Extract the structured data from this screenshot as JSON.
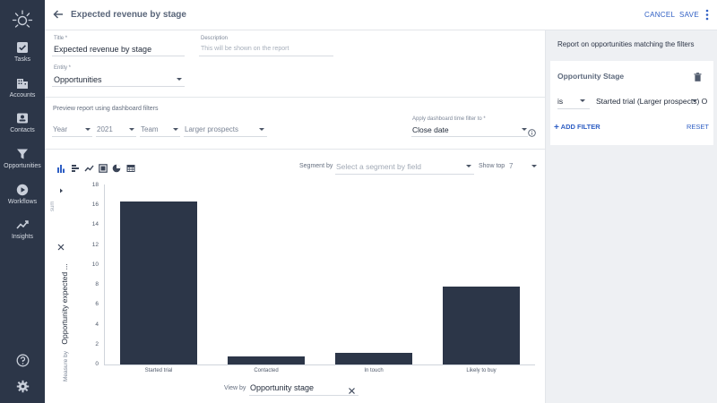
{
  "sidebar": {
    "items": [
      {
        "label": "Tasks",
        "icon": "tasks-icon"
      },
      {
        "label": "Accounts",
        "icon": "accounts-icon"
      },
      {
        "label": "Contacts",
        "icon": "contacts-icon"
      },
      {
        "label": "Opportunities",
        "icon": "filter-funnel-icon"
      },
      {
        "label": "Workflows",
        "icon": "play-circle-icon"
      },
      {
        "label": "Insights",
        "icon": "trend-line-icon"
      }
    ],
    "bottom": [
      {
        "icon": "help-icon"
      },
      {
        "icon": "gear-icon"
      }
    ]
  },
  "header": {
    "title": "Expected revenue by stage",
    "cancel_label": "CANCEL",
    "save_label": "SAVE"
  },
  "form": {
    "title_label": "Title *",
    "title_value": "Expected revenue by stage",
    "description_label": "Description",
    "description_placeholder": "This will be shown on the report",
    "entity_label": "Entity *",
    "entity_value": "Opportunities",
    "preview_text": "Preview report using dashboard filters",
    "filters": {
      "year": "Year",
      "year_value": "2021",
      "team": "Team",
      "team_value": "Larger prospects",
      "time_filter_label": "Apply dashboard time filter to *",
      "time_filter_value": "Close date"
    }
  },
  "chart_toolbar": {
    "segment_label": "Segment by",
    "segment_placeholder": "Select a segment by field",
    "show_top_label": "Show top",
    "show_top_value": "7",
    "sum_label": "sum",
    "measure_prefix": "Measure by",
    "measure_value": "Opportunity expected ...",
    "view_by_label": "View by",
    "view_by_value": "Opportunity stage"
  },
  "chart_data": {
    "type": "bar",
    "categories": [
      "Started trial",
      "Contacted",
      "In touch",
      "Likely to buy"
    ],
    "values": [
      16.4,
      0.8,
      1.2,
      7.8
    ],
    "ylim": [
      0,
      18
    ],
    "yticks": [
      0,
      2,
      4,
      6,
      8,
      10,
      12,
      14,
      16,
      18
    ],
    "bar_color": "#2c3648",
    "grid": false
  },
  "right_panel": {
    "title": "Report on opportunities matching the filters",
    "filter_card": {
      "title": "Opportunity Stage",
      "operator": "is",
      "value": "Started trial (Larger prospects)",
      "value_trunc": "Started trial (Larger prospects)  O"
    },
    "add_filter_label": "ADD FILTER",
    "reset_label": "RESET"
  },
  "colors": {
    "sidebar_bg": "#2c3648",
    "accent": "#2f5fc4",
    "panel_bg": "#eef0f3"
  }
}
